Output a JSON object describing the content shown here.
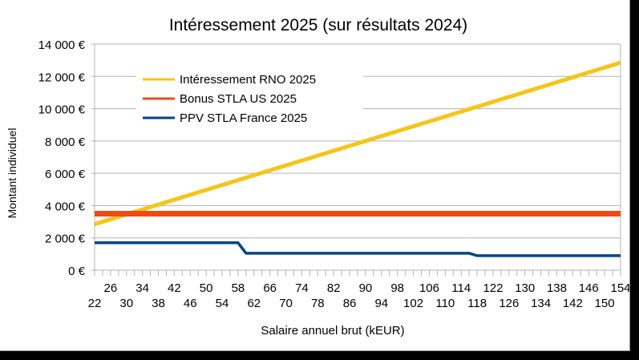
{
  "chart_data": {
    "type": "line",
    "title": "Intéressement 2025 (sur résultats 2024)",
    "xlabel": "Salaire annuel brut (kEUR)",
    "ylabel": "Montant individuel",
    "xlim": [
      22,
      154
    ],
    "ylim": [
      0,
      14000
    ],
    "x_tick_labels_upper": [
      "26",
      "34",
      "42",
      "50",
      "58",
      "66",
      "74",
      "82",
      "90",
      "98",
      "106",
      "114",
      "122",
      "130",
      "138",
      "146",
      "154"
    ],
    "x_tick_labels_lower": [
      "22",
      "30",
      "38",
      "46",
      "54",
      "62",
      "70",
      "78",
      "86",
      "94",
      "102",
      "110",
      "118",
      "126",
      "134",
      "142",
      "150"
    ],
    "y_ticks": [
      0,
      2000,
      4000,
      6000,
      8000,
      10000,
      12000,
      14000
    ],
    "y_tick_labels": [
      "0 €",
      "2 000 €",
      "4 000 €",
      "6 000 €",
      "8 000 €",
      "10 000 €",
      "12 000 €",
      "14 000 €"
    ],
    "grid": "horizontal",
    "legend_position": "top-left",
    "series": [
      {
        "name": "Intéressement RNO 2025",
        "color": "#f5c518",
        "points": [
          [
            22,
            2850
          ],
          [
            154,
            12850
          ]
        ]
      },
      {
        "name": "Bonus STLA US 2025",
        "color": "#f04a14",
        "points": [
          [
            22,
            3500
          ],
          [
            154,
            3500
          ]
        ]
      },
      {
        "name": "PPV STLA France 2025",
        "color": "#004586",
        "points": [
          [
            22,
            1700
          ],
          [
            58,
            1700
          ],
          [
            60,
            1050
          ],
          [
            116,
            1050
          ],
          [
            118,
            900
          ],
          [
            154,
            900
          ]
        ]
      }
    ]
  }
}
